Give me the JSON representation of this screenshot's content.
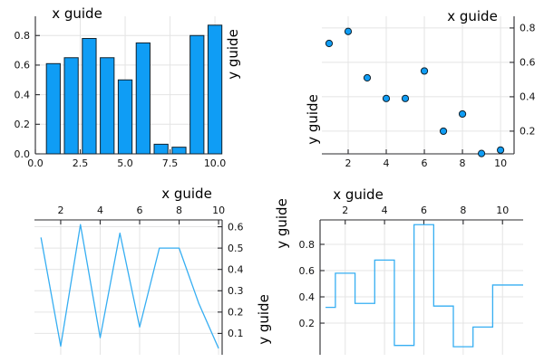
{
  "figure": {
    "background": "#ffffff",
    "series_color": "#0f9df5",
    "series_stroke": "#10222e",
    "line_color": "#36aef2",
    "grid_color": "#e4e4e4",
    "axis_color": "#2a2a2e",
    "tick_label_color": "#111111",
    "guide_color": "#000000"
  },
  "chart_data": [
    {
      "type": "bar",
      "title": "",
      "xlabel": "x guide",
      "ylabel": "y guide",
      "x": [
        1,
        2,
        3,
        4,
        5,
        6,
        7,
        8,
        9,
        10
      ],
      "values": [
        0.61,
        0.65,
        0.78,
        0.65,
        0.5,
        0.75,
        0.065,
        0.045,
        0.8,
        0.87
      ],
      "bar_width": 0.77,
      "xlim": [
        0,
        10.4
      ],
      "ylim": [
        0,
        0.93
      ],
      "xticks": {
        "values": [
          0,
          2.5,
          5,
          7.5,
          10
        ],
        "labels": [
          "0.0",
          "2.5",
          "5.0",
          "7.5",
          "10.0"
        ]
      },
      "yticks": {
        "values": [
          0,
          0.2,
          0.4,
          0.6,
          0.8
        ],
        "labels": [
          "0.0",
          "0.2",
          "0.4",
          "0.6",
          "0.8"
        ]
      },
      "x_axis_side": "bottom",
      "y_axis_side": "left",
      "grid": true,
      "legend": "none"
    },
    {
      "type": "scatter",
      "title": "",
      "xlabel": "x guide",
      "ylabel": "y guide",
      "x": [
        1,
        2,
        3,
        4,
        5,
        6,
        7,
        8,
        9,
        10
      ],
      "values": [
        0.71,
        0.78,
        0.51,
        0.39,
        0.39,
        0.55,
        0.2,
        0.3,
        0.07,
        0.09
      ],
      "marker_size": 3.6,
      "xlim": [
        0.62,
        10.71
      ],
      "ylim": [
        0.068,
        0.868
      ],
      "xticks": {
        "values": [
          2,
          4,
          6,
          8,
          10
        ],
        "labels": [
          "2",
          "4",
          "6",
          "8",
          "10"
        ]
      },
      "yticks": {
        "values": [
          0.2,
          0.4,
          0.6,
          0.8
        ],
        "labels": [
          "0.2",
          "0.4",
          "0.6",
          "0.8"
        ]
      },
      "x_axis_side": "bottom",
      "y_axis_side": "right",
      "grid": true,
      "legend": "none"
    },
    {
      "type": "line",
      "title": "",
      "xlabel": "x guide",
      "ylabel": "y guide",
      "x": [
        1,
        2,
        3,
        4,
        5,
        6,
        7,
        8,
        9,
        10
      ],
      "values": [
        0.55,
        0.04,
        0.61,
        0.08,
        0.57,
        0.13,
        0.5,
        0.5,
        0.24,
        0.03
      ],
      "xlim": [
        0.67,
        10.18
      ],
      "ylim": [
        0,
        0.632
      ],
      "xticks": {
        "values": [
          2,
          4,
          6,
          8,
          10
        ],
        "labels": [
          "2",
          "4",
          "6",
          "8",
          "10"
        ]
      },
      "yticks": {
        "values": [
          0.1,
          0.2,
          0.3,
          0.4,
          0.5,
          0.6
        ],
        "labels": [
          "0.1",
          "0.2",
          "0.3",
          "0.4",
          "0.5",
          "0.6"
        ]
      },
      "x_axis_side": "top",
      "y_axis_side": "right",
      "grid": true,
      "legend": "none"
    },
    {
      "type": "step",
      "title": "",
      "xlabel": "x guide",
      "ylabel": "y guide",
      "x": [
        1,
        2,
        3,
        4,
        5,
        6,
        7,
        8,
        9,
        10
      ],
      "values": [
        0.32,
        0.58,
        0.35,
        0.68,
        0.03,
        0.95,
        0.33,
        0.02,
        0.17,
        0.49
      ],
      "xlim": [
        0.72,
        11.05
      ],
      "ylim": [
        -0.041,
        0.986
      ],
      "xticks": {
        "values": [
          2,
          4,
          6,
          8,
          10
        ],
        "labels": [
          "2",
          "4",
          "6",
          "8",
          "10"
        ]
      },
      "yticks": {
        "values": [
          0.2,
          0.4,
          0.6,
          0.8
        ],
        "labels": [
          "0.2",
          "0.4",
          "0.6",
          "0.8"
        ]
      },
      "x_axis_side": "top",
      "y_axis_side": "left",
      "grid": true,
      "extend_last_step_to_edge": true,
      "legend": "none"
    }
  ]
}
